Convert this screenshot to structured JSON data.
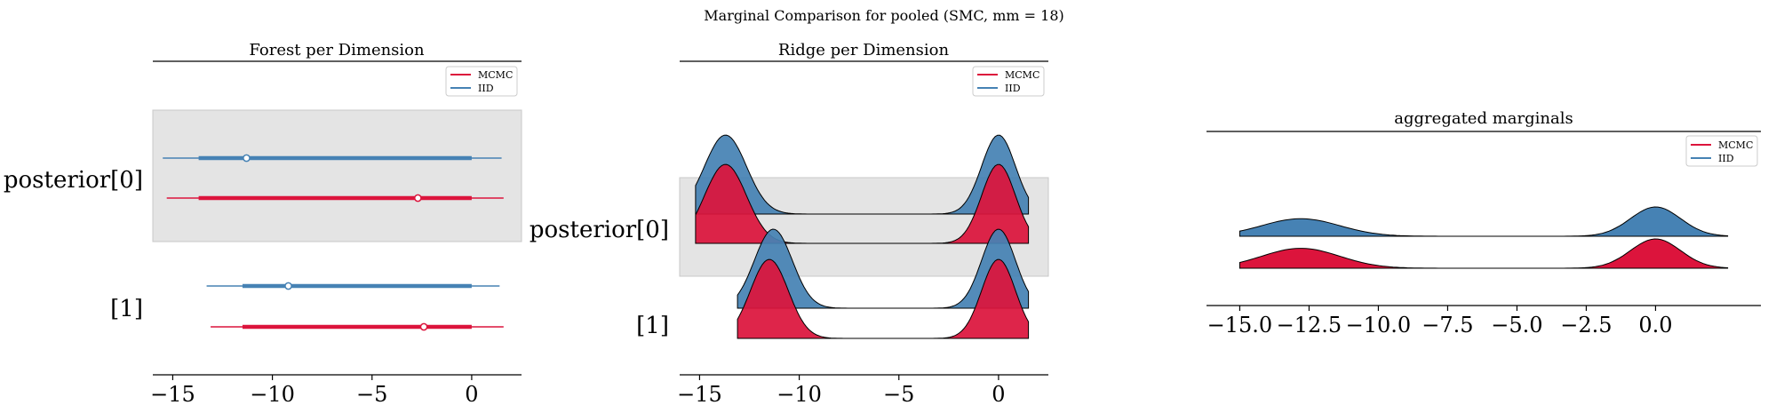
{
  "figure": {
    "suptitle": "Marginal Comparison for pooled (SMC, mm = 18)"
  },
  "colors": {
    "mcmc": "#dc143c",
    "iid": "#4682b4",
    "band": "#e4e4e4"
  },
  "chart_data": [
    {
      "type": "forest",
      "title": "Forest per Dimension",
      "categories": [
        "posterior[0]",
        "[1]"
      ],
      "xlim": [
        -16,
        2.5
      ],
      "xticks": [
        -15,
        -10,
        -5,
        0
      ],
      "xtick_labels": [
        "−15",
        "−10",
        "−5",
        "0"
      ],
      "legend": {
        "placement": "top-right",
        "entries": [
          "MCMC",
          "IID"
        ]
      },
      "series": [
        {
          "name": "IID",
          "color": "#4682b4",
          "intervals": [
            {
              "category": "posterior[0]",
              "hdi_low": -15.5,
              "hdi_high": 1.5,
              "iqr_low": -13.7,
              "iqr_high": 0,
              "point": -11.3
            },
            {
              "category": "[1]",
              "hdi_low": -13.3,
              "hdi_high": 1.4,
              "iqr_low": -11.5,
              "iqr_high": 0,
              "point": -9.2
            }
          ]
        },
        {
          "name": "MCMC",
          "color": "#dc143c",
          "intervals": [
            {
              "category": "posterior[0]",
              "hdi_low": -15.3,
              "hdi_high": 1.6,
              "iqr_low": -13.7,
              "iqr_high": 0,
              "point": -2.7
            },
            {
              "category": "[1]",
              "hdi_low": -13.1,
              "hdi_high": 1.6,
              "iqr_low": -11.5,
              "iqr_high": 0,
              "point": -2.4
            }
          ]
        }
      ]
    },
    {
      "type": "ridge",
      "title": "Ridge per Dimension",
      "categories": [
        "posterior[0]",
        "[1]"
      ],
      "xlim": [
        -16,
        2.5
      ],
      "xticks": [
        -15,
        -10,
        -5,
        0
      ],
      "xtick_labels": [
        "−15",
        "−10",
        "−5",
        "0"
      ],
      "legend": {
        "placement": "top-right",
        "entries": [
          "MCMC",
          "IID"
        ]
      },
      "series": [
        {
          "name": "IID",
          "color": "#4682b4",
          "ridges": [
            {
              "category": "posterior[0]",
              "x_range": [
                -15.2,
                1.5
              ],
              "peaks": [
                {
                  "mean": -13.7,
                  "sd": 1.05,
                  "height": 1.0
                },
                {
                  "mean": 0.0,
                  "sd": 0.85,
                  "height": 1.0
                }
              ]
            },
            {
              "category": "[1]",
              "x_range": [
                -13.1,
                1.5
              ],
              "peaks": [
                {
                  "mean": -11.3,
                  "sd": 0.95,
                  "height": 1.0
                },
                {
                  "mean": 0.0,
                  "sd": 0.85,
                  "height": 1.0
                }
              ]
            }
          ]
        },
        {
          "name": "MCMC",
          "color": "#dc143c",
          "ridges": [
            {
              "category": "posterior[0]",
              "x_range": [
                -15.2,
                1.5
              ],
              "peaks": [
                {
                  "mean": -13.7,
                  "sd": 1.05,
                  "height": 1.0
                },
                {
                  "mean": 0.0,
                  "sd": 0.85,
                  "height": 1.0
                }
              ]
            },
            {
              "category": "[1]",
              "x_range": [
                -13.1,
                1.5
              ],
              "peaks": [
                {
                  "mean": -11.5,
                  "sd": 0.95,
                  "height": 1.0
                },
                {
                  "mean": 0.0,
                  "sd": 0.85,
                  "height": 1.0
                }
              ]
            }
          ]
        }
      ]
    },
    {
      "type": "ridge",
      "title": "aggregated marginals",
      "xlim": [
        -16.2,
        3.8
      ],
      "xticks": [
        -15,
        -12.5,
        -10,
        -7.5,
        -5,
        -2.5,
        0
      ],
      "xtick_labels": [
        "−15.0",
        "−12.5",
        "−10.0",
        "−7.5",
        "−5.0",
        "−2.5",
        "0.0"
      ],
      "legend": {
        "placement": "top-right",
        "entries": [
          "MCMC",
          "IID"
        ]
      },
      "series": [
        {
          "name": "IID",
          "color": "#4682b4",
          "x_range": [
            -15,
            2.6
          ],
          "peaks": [
            {
              "mean": -12.8,
              "sd": 1.4,
              "height": 0.6
            },
            {
              "mean": 0.0,
              "sd": 0.9,
              "height": 1.0
            }
          ]
        },
        {
          "name": "MCMC",
          "color": "#dc143c",
          "x_range": [
            -15,
            2.6
          ],
          "peaks": [
            {
              "mean": -12.8,
              "sd": 1.4,
              "height": 0.68
            },
            {
              "mean": 0.0,
              "sd": 0.9,
              "height": 1.0
            }
          ]
        }
      ]
    }
  ]
}
